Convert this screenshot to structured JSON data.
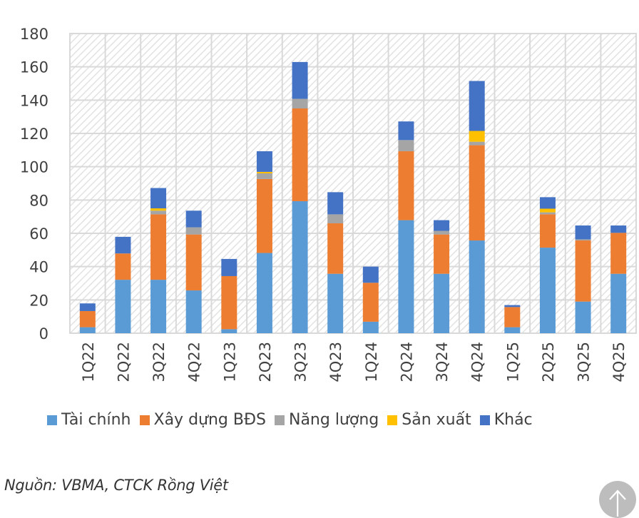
{
  "chart_data": {
    "type": "bar",
    "stacked": true,
    "title": "",
    "xlabel": "",
    "ylabel": "",
    "ylim": [
      0,
      180
    ],
    "yticks": [
      0,
      20,
      40,
      60,
      80,
      100,
      120,
      140,
      160,
      180
    ],
    "grid": true,
    "legend_position": "bottom",
    "categories": [
      "1Q22",
      "2Q22",
      "3Q22",
      "4Q22",
      "1Q23",
      "2Q23",
      "3Q23",
      "4Q23",
      "1Q24",
      "2Q24",
      "3Q24",
      "4Q24",
      "1Q25",
      "2Q25",
      "3Q25",
      "4Q25"
    ],
    "series": [
      {
        "name": "Tài chính",
        "color": "#5B9BD5",
        "values": [
          3.6,
          32.1,
          32.1,
          25.7,
          2.4,
          48.2,
          79.3,
          35.7,
          6.9,
          67.9,
          35.7,
          55.7,
          3.6,
          51.4,
          19.0,
          35.7
        ]
      },
      {
        "name": "Xây dựng BĐS",
        "color": "#ED7D31",
        "values": [
          9.7,
          15.8,
          39.3,
          33.6,
          31.9,
          44.4,
          55.7,
          30.3,
          23.4,
          41.4,
          23.6,
          57.2,
          12.1,
          20.0,
          36.7,
          24.6
        ]
      },
      {
        "name": "Năng lượng",
        "color": "#A5A5A5",
        "values": [
          0,
          0,
          2.2,
          4.3,
          0,
          3.4,
          5.8,
          5.4,
          0,
          6.7,
          2.2,
          2.1,
          0,
          1.2,
          0.7,
          0
        ]
      },
      {
        "name": "Sản xuất",
        "color": "#FFC000",
        "values": [
          0,
          0,
          1.4,
          0,
          0,
          0.9,
          0,
          0,
          0,
          0,
          0,
          6.5,
          0,
          2.2,
          0,
          0
        ]
      },
      {
        "name": "Khác",
        "color": "#4472C4",
        "values": [
          4.6,
          10.0,
          12.2,
          10.0,
          10.3,
          12.4,
          22.1,
          13.3,
          9.7,
          11.2,
          6.4,
          30.0,
          1.2,
          6.9,
          8.3,
          4.4
        ]
      }
    ]
  },
  "source_note": "Nguồn: VBMA, CTCK Rồng Việt",
  "scroll_top": {
    "icon": "arrow-up-icon"
  }
}
